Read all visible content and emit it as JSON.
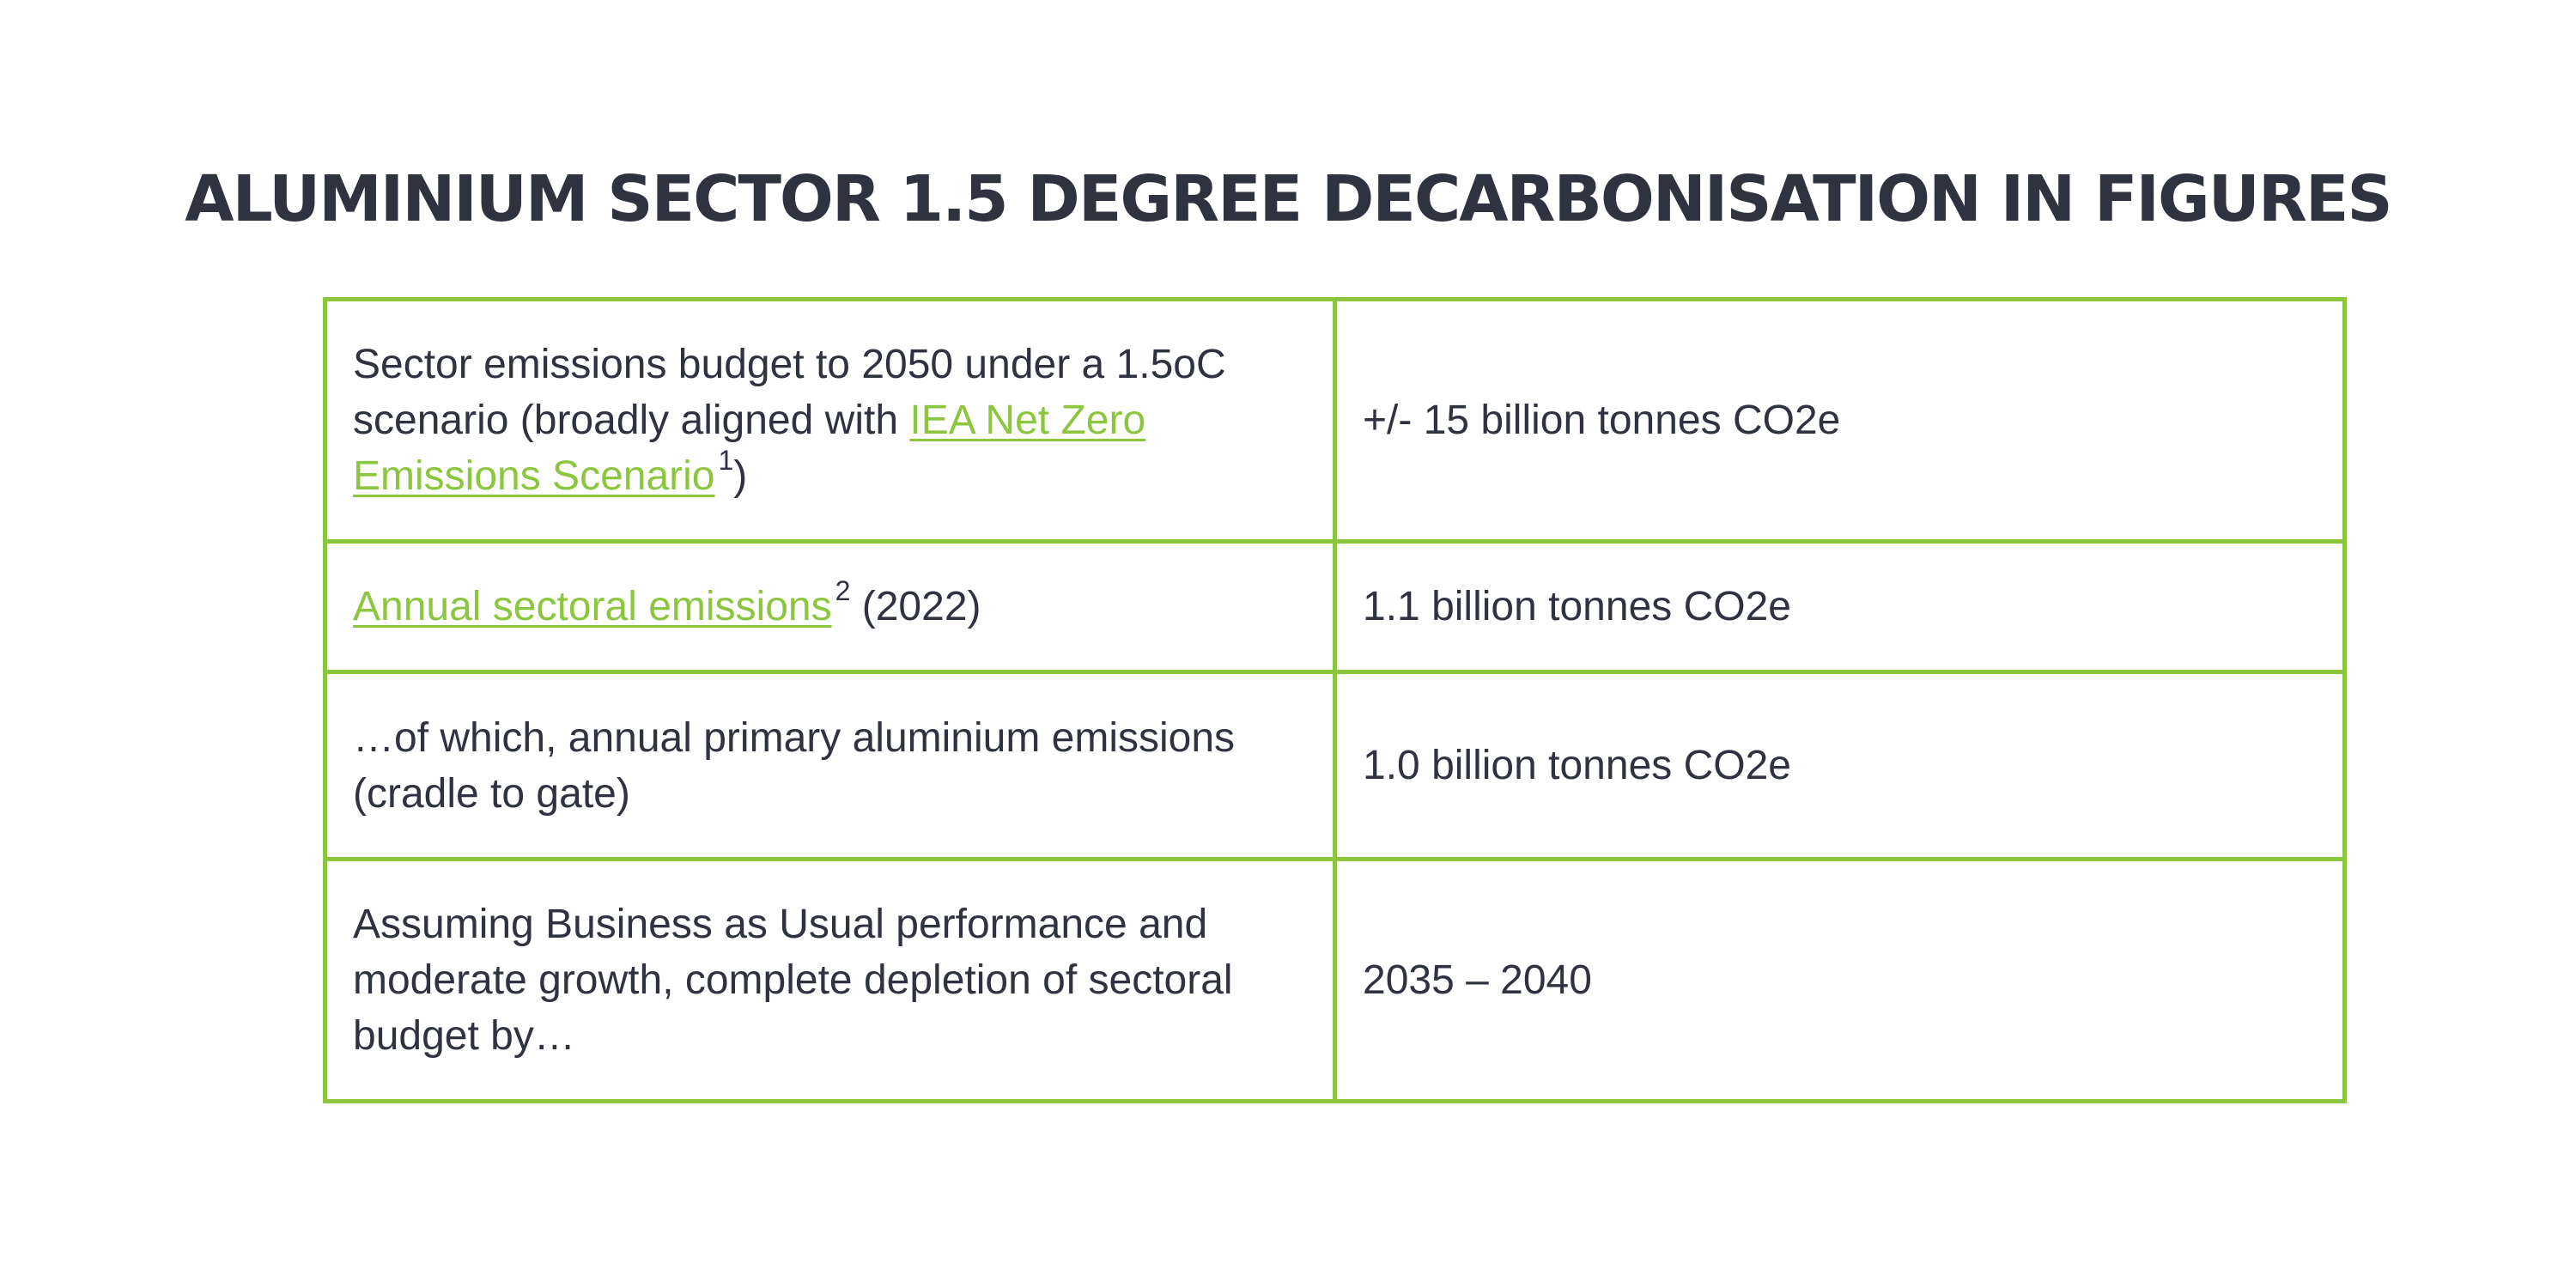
{
  "title": "ALUMINIUM SECTOR 1.5 DEGREE DECARBONISATION IN FIGURES",
  "rows": [
    {
      "label_pre": "Sector emissions budget to 2050 under a 1.5oC scenario (broadly aligned with ",
      "label_link": "IEA Net Zero Emissions Scenario",
      "label_sup": "1",
      "label_post": ")",
      "value": "+/- 15 billion tonnes CO2e"
    },
    {
      "label_link": "Annual sectoral emissions",
      "label_sup": "2",
      "label_post": " (2022)",
      "value": "1.1 billion tonnes CO2e"
    },
    {
      "label": "…of which, annual primary aluminium emissions (cradle to gate)",
      "value": "1.0 billion tonnes CO2e"
    },
    {
      "label": "Assuming Business as Usual performance and moderate growth, complete depletion of sectoral budget by…",
      "value": "2035 – 2040"
    }
  ],
  "colors": {
    "accent": "#8cc63f",
    "text": "#2f3340"
  }
}
